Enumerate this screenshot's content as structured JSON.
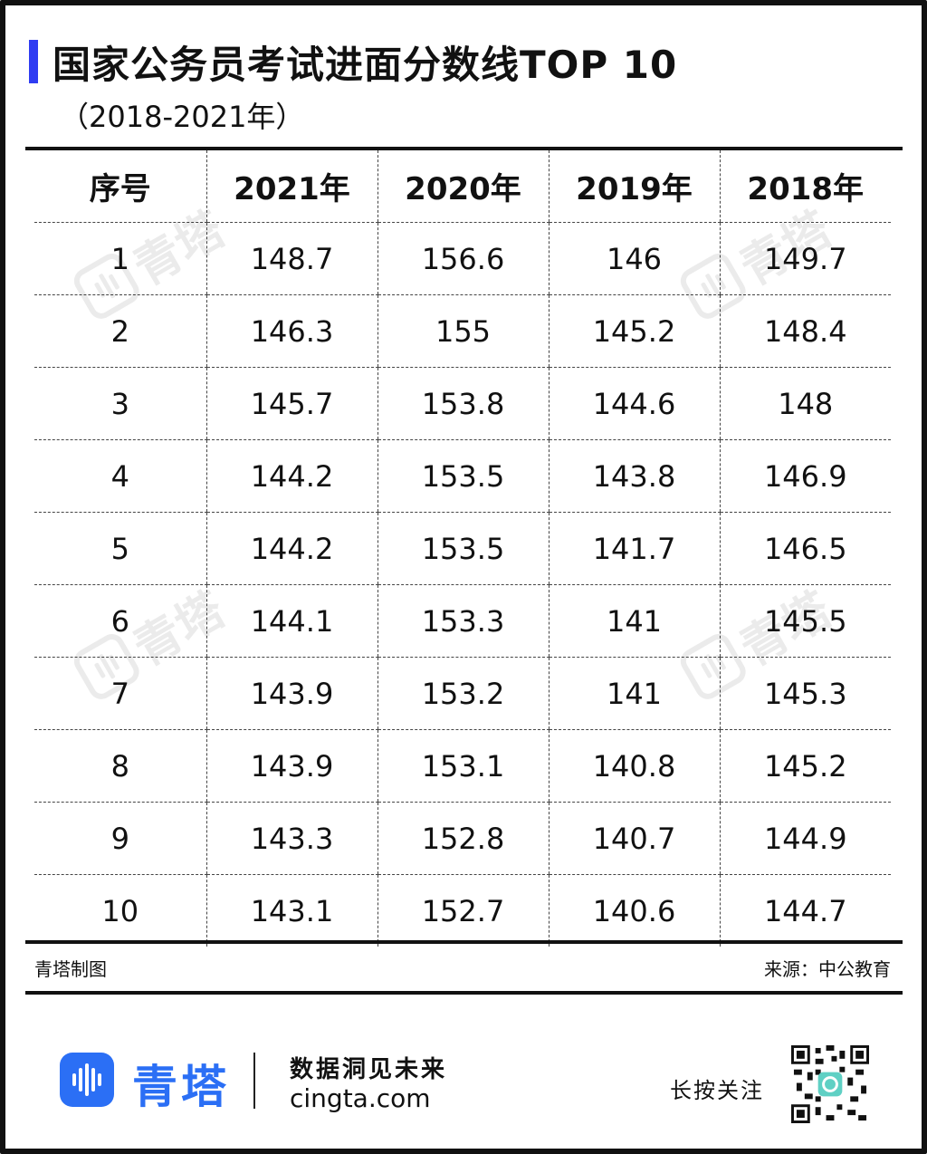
{
  "title": "国家公务员考试进面分数线TOP 10",
  "subtitle": "（2018-2021年）",
  "accent_color": "#2f3cf2",
  "brand_color": "#2b6ff5",
  "chart_data": {
    "type": "table",
    "columns": [
      "序号",
      "2021年",
      "2020年",
      "2019年",
      "2018年"
    ],
    "rows": [
      [
        "1",
        "148.7",
        "156.6",
        "146",
        "149.7"
      ],
      [
        "2",
        "146.3",
        "155",
        "145.2",
        "148.4"
      ],
      [
        "3",
        "145.7",
        "153.8",
        "144.6",
        "148"
      ],
      [
        "4",
        "144.2",
        "153.5",
        "143.8",
        "146.9"
      ],
      [
        "5",
        "144.2",
        "153.5",
        "141.7",
        "146.5"
      ],
      [
        "6",
        "144.1",
        "153.3",
        "141",
        "145.5"
      ],
      [
        "7",
        "143.9",
        "153.2",
        "141",
        "145.3"
      ],
      [
        "8",
        "143.9",
        "153.1",
        "140.8",
        "145.2"
      ],
      [
        "9",
        "143.3",
        "152.8",
        "140.7",
        "144.9"
      ],
      [
        "10",
        "143.1",
        "152.7",
        "140.6",
        "144.7"
      ]
    ]
  },
  "footer": {
    "credit": "青塔制图",
    "source": "来源：中公教育"
  },
  "watermark": {
    "text": "青塔",
    "icon": "qingta-logo-icon"
  },
  "branding": {
    "logo_icon": "qingta-logo-icon",
    "name": "青塔",
    "slogan": "数据洞见未来",
    "website": "cingta.com",
    "follow_text": "长按关注",
    "qr_icon": "qr-code-icon"
  }
}
